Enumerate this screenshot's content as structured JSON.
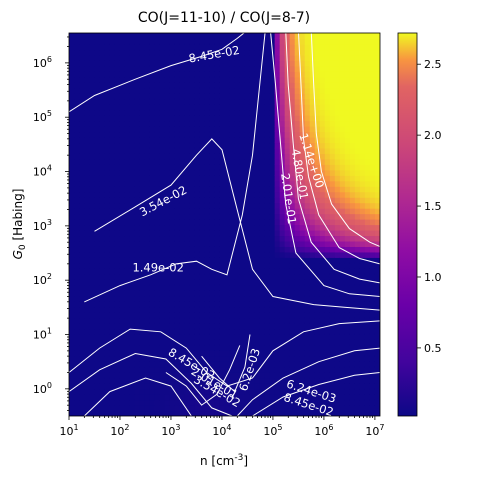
{
  "chart_data": {
    "type": "heatmap",
    "title": "CO(J=11-10) / CO(J=8-7)",
    "xlabel": "n [cm$^{-3}$]",
    "ylabel": "$G_0$ [Habing]",
    "xscale": "log",
    "yscale": "log",
    "xlim_log10": [
      1,
      7.1
    ],
    "ylim_log10": [
      -0.5,
      6.55
    ],
    "x_ticks": [
      {
        "base": "10",
        "exp": "1"
      },
      {
        "base": "10",
        "exp": "2"
      },
      {
        "base": "10",
        "exp": "3"
      },
      {
        "base": "10",
        "exp": "4"
      },
      {
        "base": "10",
        "exp": "5"
      },
      {
        "base": "10",
        "exp": "6"
      },
      {
        "base": "10",
        "exp": "7"
      }
    ],
    "y_ticks": [
      {
        "base": "10",
        "exp": "0"
      },
      {
        "base": "10",
        "exp": "1"
      },
      {
        "base": "10",
        "exp": "2"
      },
      {
        "base": "10",
        "exp": "3"
      },
      {
        "base": "10",
        "exp": "4"
      },
      {
        "base": "10",
        "exp": "5"
      },
      {
        "base": "10",
        "exp": "6"
      }
    ],
    "colormap": "plasma",
    "colorbar": {
      "vmin": 0.02,
      "vmax": 2.72,
      "ticks": [
        "0.5",
        "1.0",
        "1.5",
        "2.0",
        "2.5"
      ],
      "tick_values": [
        0.5,
        1.0,
        1.5,
        2.0,
        2.5
      ]
    },
    "contour_labels": [
      {
        "text": "8.45e-02",
        "lx": 3.85,
        "ly": 6.15,
        "rot": -10
      },
      {
        "text": "1.14e+00",
        "lx": 5.75,
        "ly": 4.2,
        "rot": 72
      },
      {
        "text": "4.80e-01",
        "lx": 5.52,
        "ly": 3.95,
        "rot": 80
      },
      {
        "text": "2.01e-01",
        "lx": 5.3,
        "ly": 3.5,
        "rot": 82
      },
      {
        "text": "3.54e-02",
        "lx": 2.85,
        "ly": 3.45,
        "rot": -28
      },
      {
        "text": "1.49e-02",
        "lx": 2.75,
        "ly": 2.22,
        "rot": 0
      },
      {
        "text": "8.45e-02",
        "lx": 3.4,
        "ly": 0.45,
        "rot": 30
      },
      {
        "text": "2.01e-01",
        "lx": 3.85,
        "ly": 0.1,
        "rot": 30
      },
      {
        "text": "3.54e-02",
        "lx": 3.9,
        "ly": -0.05,
        "rot": 30
      },
      {
        "text": "6.2e-03",
        "lx": 4.55,
        "ly": 0.35,
        "rot": -72
      },
      {
        "text": "6.24e-03",
        "lx": 5.75,
        "ly": -0.05,
        "rot": 18
      },
      {
        "text": "8.45e-02",
        "lx": 5.7,
        "ly": -0.3,
        "rot": 18
      }
    ]
  }
}
